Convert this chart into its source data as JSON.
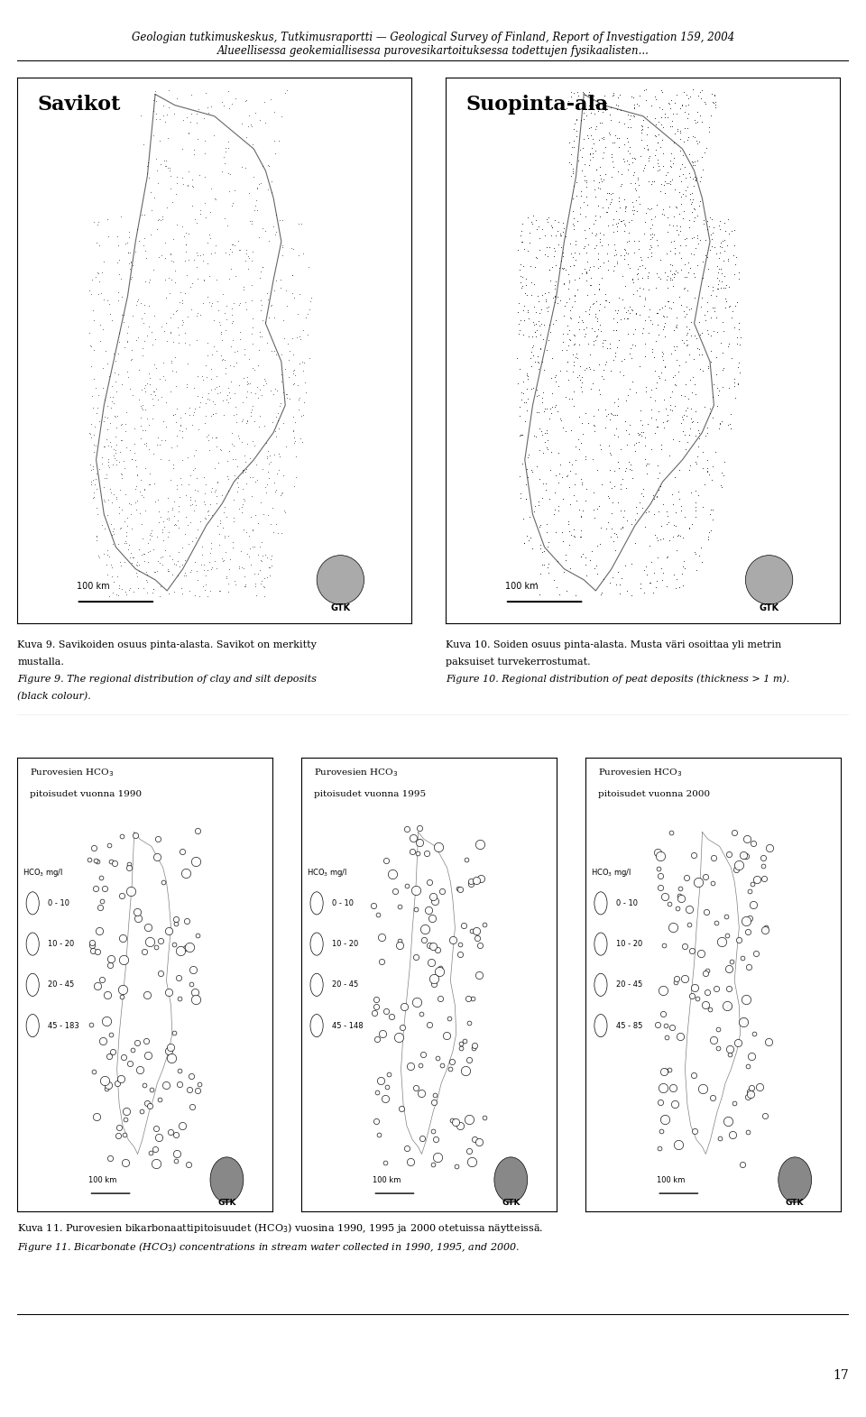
{
  "header_line1": "Geologian tutkimuskeskus, Tutkimusraportti — Geological Survey of Finland, Report of Investigation 159, 2004",
  "header_line2": "Alueellisessa geokemiallisessa purovesikartoituksessa todettujen fysikaalisten...",
  "map1_title": "Savikot",
  "map2_title": "Suopinta-ala",
  "caption_left_1": "Kuva 9. Savikoiden osuus pinta-alasta. Savikot on merkitty",
  "caption_left_2": "mustalla.",
  "caption_left_3": "Figure 9. The regional distribution of clay and silt deposits",
  "caption_left_4": "(black colour).",
  "caption_right_1": "Kuva 10. Soiden osuus pinta-alasta. Musta väri osoittaa yli metrin",
  "caption_right_2": "paksuiset turvekerrostumat.",
  "caption_right_3": "Figure 10. Regional distribution of peat deposits (thickness > 1 m).",
  "bottom_title1": "Purovesien HCO",
  "bottom_title1b": "3",
  "bottom_sub1": "pitoisudet vuonna 1990",
  "bottom_title2": "Purovesien HCO",
  "bottom_title2b": "3",
  "bottom_sub2": "pitoisudet vuonna 1995",
  "bottom_title3": "Purovesien HCO",
  "bottom_title3b": "3",
  "bottom_sub3": "pitoisudet vuonna 2000",
  "legend_label": "HCO",
  "legend_label_sub": "3",
  "legend_unit": "mg/l",
  "legend_ranges_1": [
    "0 - 10",
    "10 - 20",
    "20 - 45",
    "45 - 183"
  ],
  "legend_ranges_2": [
    "0 - 10",
    "10 - 20",
    "20 - 45",
    "45 - 148"
  ],
  "legend_ranges_3": [
    "0 - 10",
    "10 - 20",
    "20 - 45",
    "45 - 85"
  ],
  "scale_label": "100 km",
  "gtk_label": "GTK",
  "footer_line1": "Kuva 11. Purovesien bikarbonaattipitoisuudet (HCO",
  "footer_line1_sub": "3",
  "footer_line1_end": ") vuosina 1990, 1995 ja 2000 otetuissa näytteissä.",
  "footer_line2": "Figure 11. Bicarbonate (HCO",
  "footer_line2_sub": "3",
  "footer_line2_end": ") concentrations in stream water collected in 1990, 1995, and 2000.",
  "bg_color": "#ffffff",
  "text_color": "#000000",
  "map_border_color": "#000000",
  "page_num": "17"
}
